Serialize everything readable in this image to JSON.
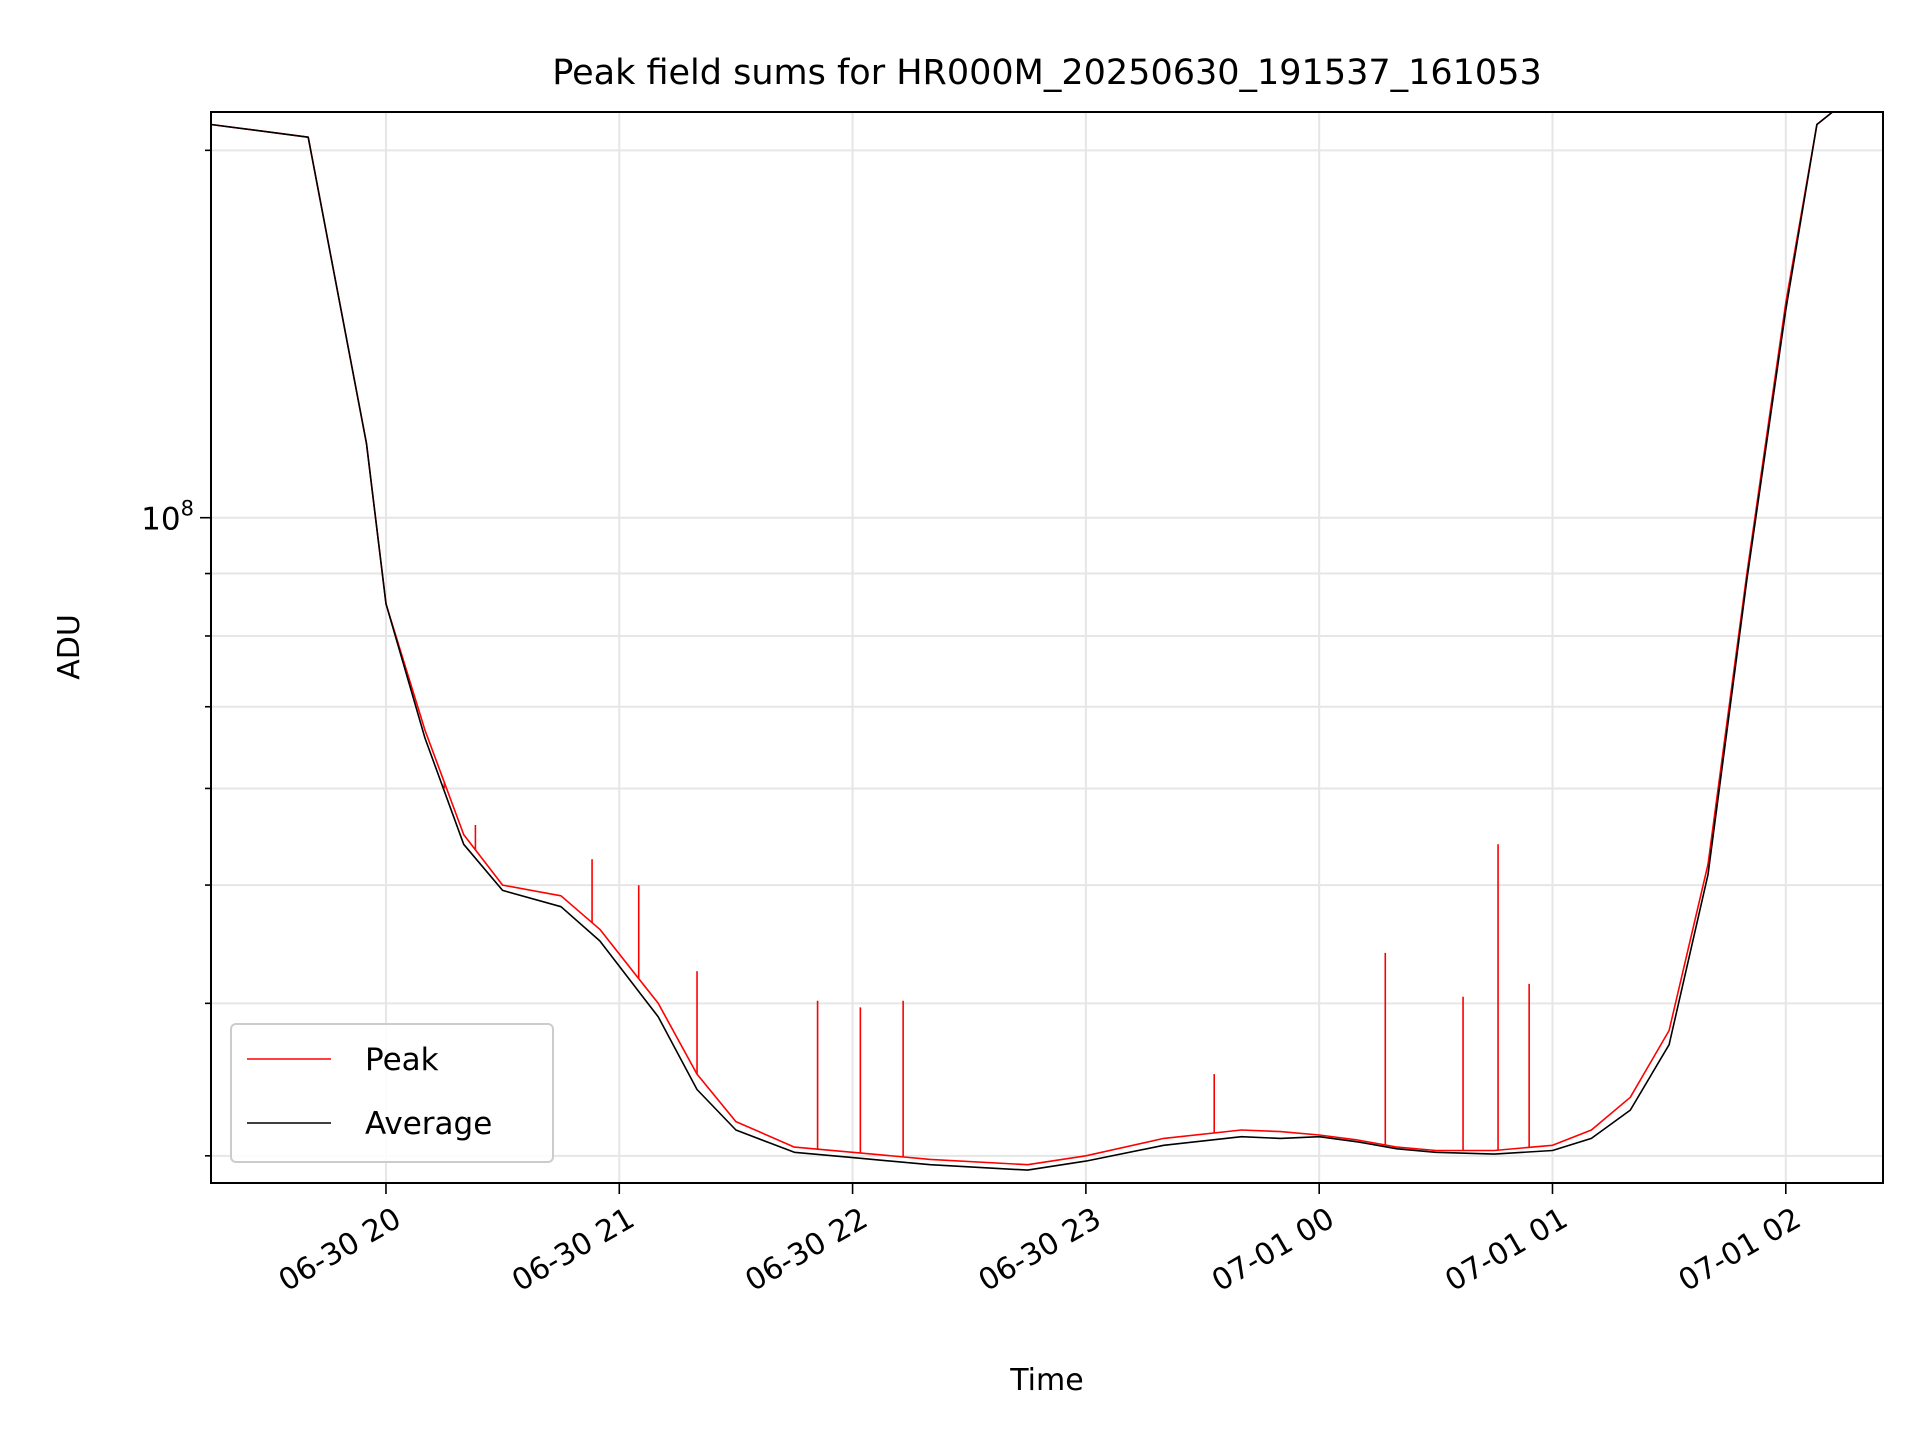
{
  "chart_data": {
    "type": "line",
    "title": "Peak field sums for HR000M_20250630_191537_161053",
    "xlabel": "Time",
    "ylabel": "ADU",
    "y_scale": "log",
    "ylim": [
      28500000,
      215000000
    ],
    "xlim": [
      "2025-06-30 19:15",
      "2025-07-01 02:25"
    ],
    "grid": true,
    "legend_position": "lower-left",
    "x_ticks": [
      {
        "at": "2025-06-30 20:00",
        "label": "06-30 20"
      },
      {
        "at": "2025-06-30 21:00",
        "label": "06-30 21"
      },
      {
        "at": "2025-06-30 22:00",
        "label": "06-30 22"
      },
      {
        "at": "2025-06-30 23:00",
        "label": "06-30 23"
      },
      {
        "at": "2025-07-01 00:00",
        "label": "07-01 00"
      },
      {
        "at": "2025-07-01 01:00",
        "label": "07-01 01"
      },
      {
        "at": "2025-07-01 02:00",
        "label": "07-01 02"
      }
    ],
    "y_ticks": [
      {
        "value": 100000000,
        "label_base": "10",
        "label_exp": "8"
      }
    ],
    "series": [
      {
        "name": "Peak",
        "color": "#ff0000",
        "x": [
          "2025-06-30 19:15",
          "2025-06-30 19:30",
          "2025-06-30 19:40",
          "2025-06-30 19:55",
          "2025-06-30 20:00",
          "2025-06-30 20:10",
          "2025-06-30 20:20",
          "2025-06-30 20:30",
          "2025-06-30 20:45",
          "2025-06-30 20:55",
          "2025-06-30 21:10",
          "2025-06-30 21:20",
          "2025-06-30 21:30",
          "2025-06-30 21:45",
          "2025-06-30 22:00",
          "2025-06-30 22:20",
          "2025-06-30 22:45",
          "2025-06-30 23:00",
          "2025-06-30 23:20",
          "2025-06-30 23:40",
          "2025-06-30 23:50",
          "2025-07-01 00:00",
          "2025-07-01 00:10",
          "2025-07-01 00:20",
          "2025-07-01 00:30",
          "2025-07-01 00:45",
          "2025-07-01 01:00",
          "2025-07-01 01:10",
          "2025-07-01 01:20",
          "2025-07-01 01:30",
          "2025-07-01 01:40",
          "2025-07-01 01:50",
          "2025-07-01 02:00",
          "2025-07-01 02:08",
          "2025-07-01 02:12"
        ],
        "values": [
          210000000,
          207000000,
          205000000,
          115000000,
          85000000,
          67000000,
          55000000,
          50000000,
          49000000,
          46000000,
          40000000,
          35000000,
          32000000,
          30500000,
          30200000,
          29800000,
          29500000,
          30000000,
          31000000,
          31500000,
          31400000,
          31200000,
          30900000,
          30500000,
          30300000,
          30300000,
          30600000,
          31500000,
          33500000,
          38000000,
          52000000,
          90000000,
          150000000,
          210000000,
          215000000
        ],
        "spikes": [
          {
            "x": "2025-06-30 20:15",
            "y": 60000000
          },
          {
            "x": "2025-06-30 20:23",
            "y": 56000000
          },
          {
            "x": "2025-06-30 20:53",
            "y": 52500000
          },
          {
            "x": "2025-06-30 21:05",
            "y": 50000000
          },
          {
            "x": "2025-06-30 21:20",
            "y": 42500000
          },
          {
            "x": "2025-06-30 21:51",
            "y": 40200000
          },
          {
            "x": "2025-06-30 22:02",
            "y": 39700000
          },
          {
            "x": "2025-06-30 22:13",
            "y": 40200000
          },
          {
            "x": "2025-06-30 23:33",
            "y": 35000000
          },
          {
            "x": "2025-07-01 00:17",
            "y": 44000000
          },
          {
            "x": "2025-07-01 00:37",
            "y": 40500000
          },
          {
            "x": "2025-07-01 00:46",
            "y": 54000000
          },
          {
            "x": "2025-07-01 00:54",
            "y": 41500000
          },
          {
            "x": "2025-07-01 01:35",
            "y": 44500000
          }
        ]
      },
      {
        "name": "Average",
        "color": "#000000",
        "x": [
          "2025-06-30 19:15",
          "2025-06-30 19:30",
          "2025-06-30 19:40",
          "2025-06-30 19:55",
          "2025-06-30 20:00",
          "2025-06-30 20:10",
          "2025-06-30 20:20",
          "2025-06-30 20:30",
          "2025-06-30 20:45",
          "2025-06-30 20:55",
          "2025-06-30 21:10",
          "2025-06-30 21:20",
          "2025-06-30 21:30",
          "2025-06-30 21:45",
          "2025-06-30 22:00",
          "2025-06-30 22:20",
          "2025-06-30 22:45",
          "2025-06-30 23:00",
          "2025-06-30 23:20",
          "2025-06-30 23:40",
          "2025-06-30 23:50",
          "2025-07-01 00:00",
          "2025-07-01 00:10",
          "2025-07-01 00:20",
          "2025-07-01 00:30",
          "2025-07-01 00:45",
          "2025-07-01 01:00",
          "2025-07-01 01:10",
          "2025-07-01 01:20",
          "2025-07-01 01:30",
          "2025-07-01 01:40",
          "2025-07-01 01:50",
          "2025-07-01 02:00",
          "2025-07-01 02:08",
          "2025-07-01 02:12"
        ],
        "values": [
          210000000,
          207000000,
          205000000,
          115000000,
          85000000,
          66000000,
          54000000,
          49500000,
          48000000,
          45000000,
          39000000,
          34000000,
          31500000,
          30200000,
          29900000,
          29500000,
          29200000,
          29700000,
          30600000,
          31100000,
          31000000,
          31100000,
          30800000,
          30400000,
          30200000,
          30100000,
          30300000,
          31000000,
          32700000,
          37000000,
          51000000,
          89000000,
          148000000,
          210000000,
          215000000
        ]
      }
    ]
  }
}
